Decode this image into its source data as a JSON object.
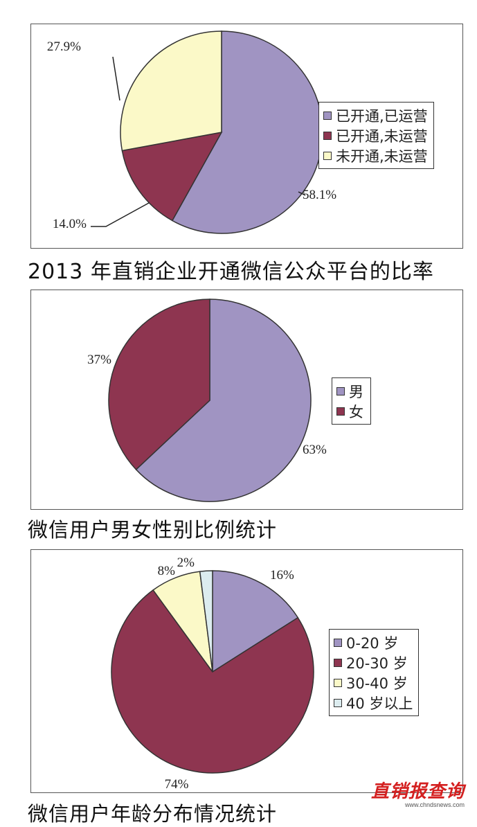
{
  "colors": {
    "lavender": "#a094c2",
    "maroon": "#8e3550",
    "cream": "#fbf9c8",
    "lightblue": "#dcecef"
  },
  "chart_data": [
    {
      "type": "pie",
      "caption": "2013 年直销企业开通微信公众平台的比率",
      "slices": [
        {
          "label": "已开通,已运营",
          "value": 58.1,
          "display": "58.1%",
          "color": "#a094c2"
        },
        {
          "label": "已开通,未运营",
          "value": 14.0,
          "display": "14.0%",
          "color": "#8e3550"
        },
        {
          "label": "未开通,未运营",
          "value": 27.9,
          "display": "27.9%",
          "color": "#fbf9c8"
        }
      ]
    },
    {
      "type": "pie",
      "caption": "微信用户男女性别比例统计",
      "slices": [
        {
          "label": "男",
          "value": 63,
          "display": "63%",
          "color": "#a094c2"
        },
        {
          "label": "女",
          "value": 37,
          "display": "37%",
          "color": "#8e3550"
        }
      ]
    },
    {
      "type": "pie",
      "caption": "微信用户年龄分布情况统计",
      "slices": [
        {
          "label": "0-20 岁",
          "value": 16,
          "display": "16%",
          "color": "#a094c2"
        },
        {
          "label": "20-30 岁",
          "value": 74,
          "display": "74%",
          "color": "#8e3550"
        },
        {
          "label": "30-40 岁",
          "value": 8,
          "display": "8%",
          "color": "#fbf9c8"
        },
        {
          "label": "40 岁以上",
          "value": 2,
          "display": "2%",
          "color": "#dcecef"
        }
      ]
    }
  ],
  "watermark": {
    "logo": "直销报查询",
    "url": "www.chndsnews.com"
  }
}
